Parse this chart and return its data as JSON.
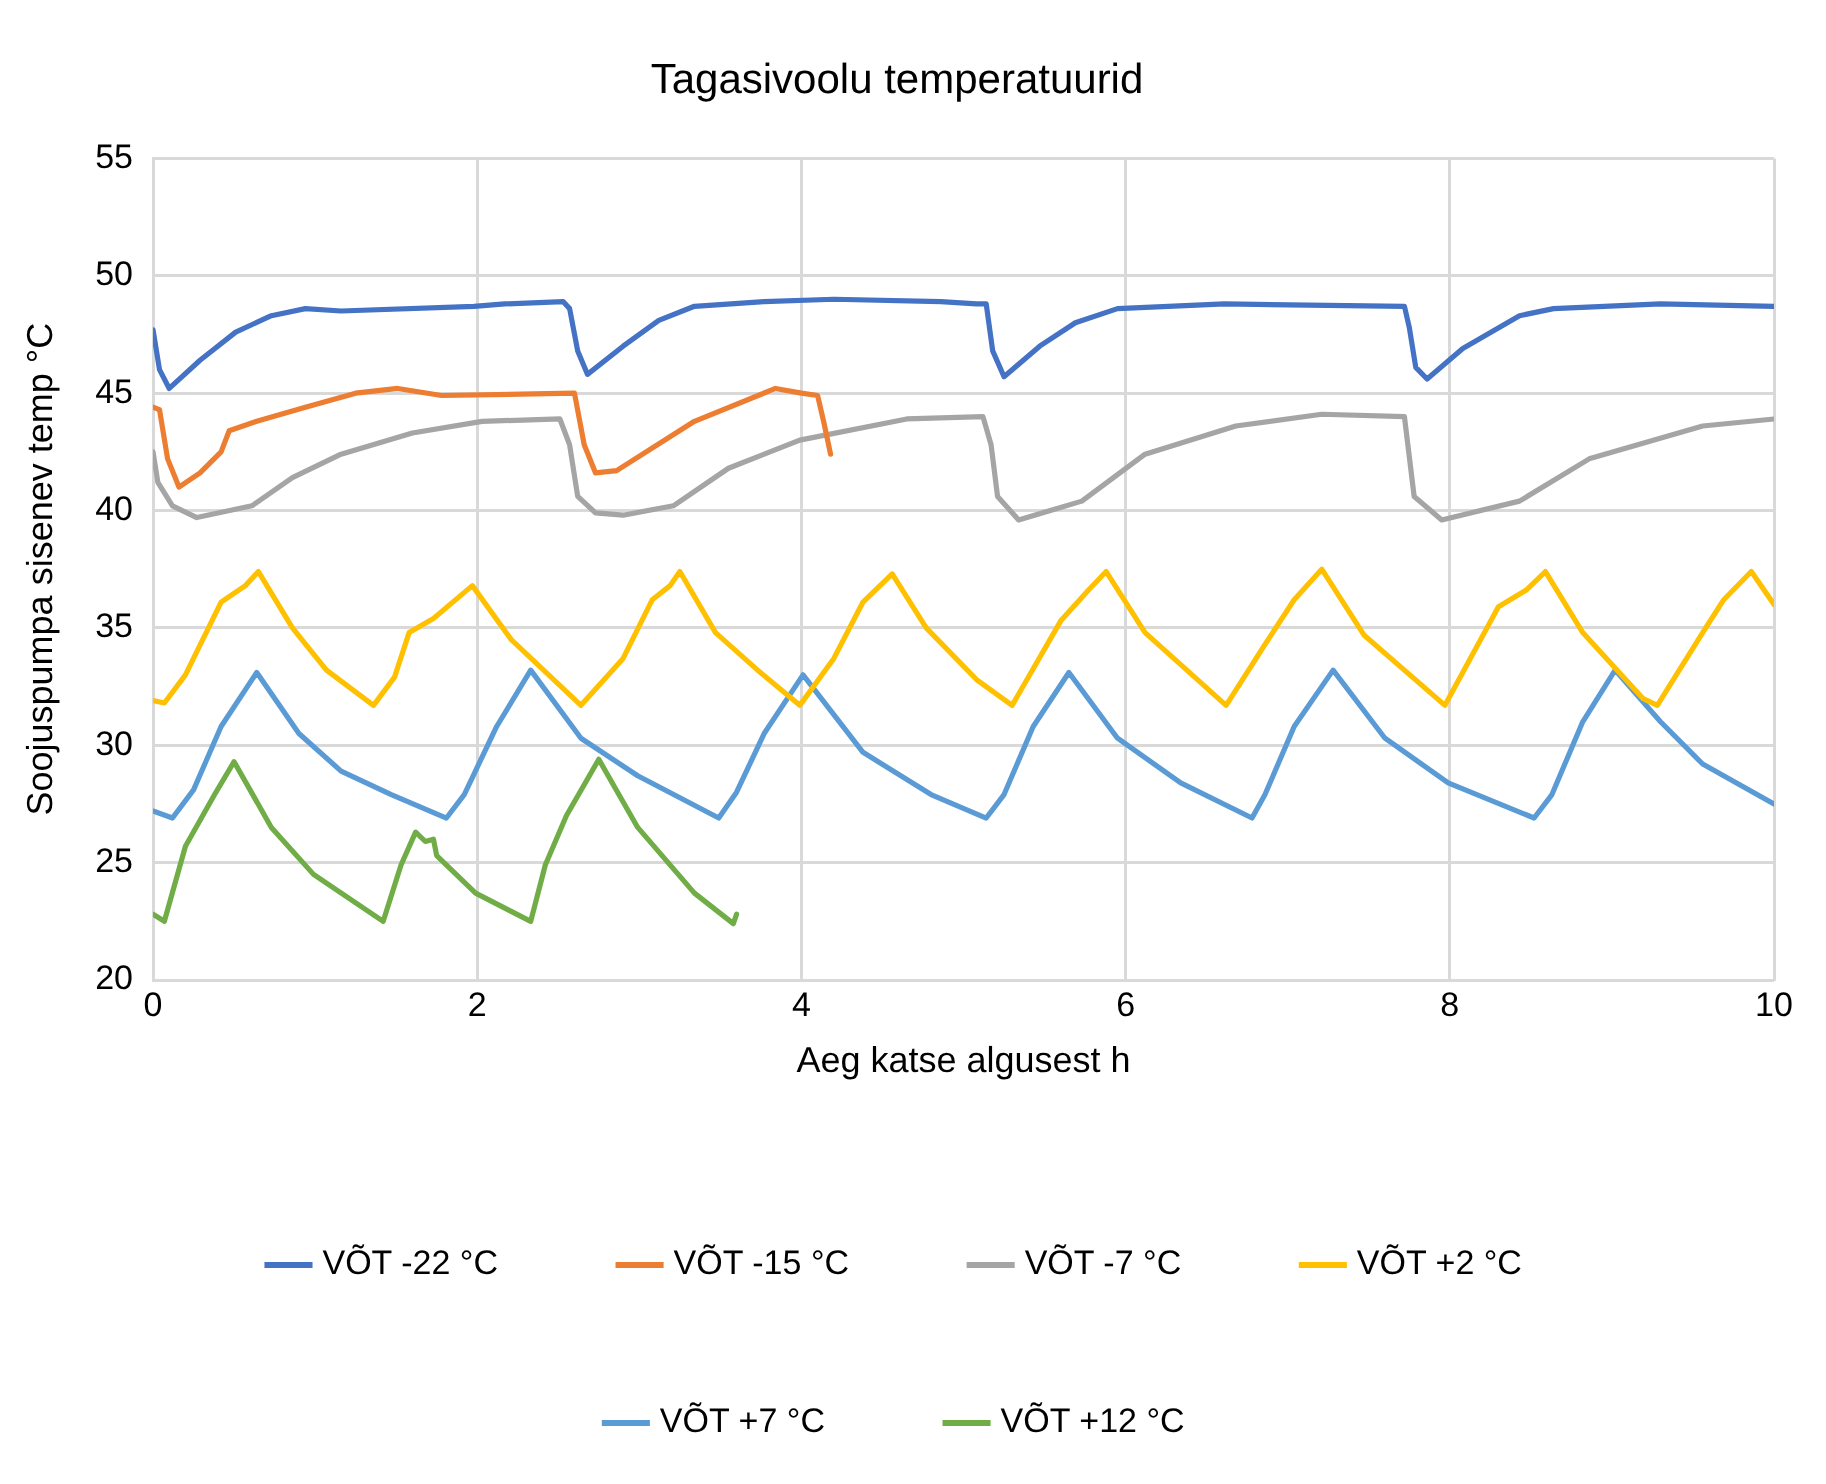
{
  "chart_data": {
    "type": "line",
    "title": "Tagasivoolu temperatuurid",
    "xlabel": "Aeg katse algusest h",
    "ylabel": "Soojuspumpa sisenev temp °C",
    "xlim": [
      0,
      10
    ],
    "ylim": [
      20,
      55
    ],
    "xticks": [
      0,
      2,
      4,
      6,
      8,
      10
    ],
    "yticks": [
      20,
      25,
      30,
      35,
      40,
      45,
      50,
      55
    ],
    "grid": true,
    "legend": "bottom",
    "series": [
      {
        "name": "VÕT -22 °C",
        "color": "#4472c4",
        "x": [
          0,
          0.04,
          0.1,
          0.29,
          0.51,
          0.73,
          0.94,
          1.16,
          1.98,
          2.17,
          2.53,
          2.57,
          2.62,
          2.68,
          2.9,
          3.12,
          3.34,
          3.77,
          4.2,
          4.86,
          5.08,
          5.14,
          5.18,
          5.25,
          5.47,
          5.69,
          5.95,
          6.61,
          7.72,
          7.75,
          7.79,
          7.86,
          8.08,
          8.43,
          8.64,
          9.3,
          10
        ],
        "values": [
          47.7,
          46.0,
          45.2,
          46.4,
          47.6,
          48.3,
          48.6,
          48.5,
          48.7,
          48.8,
          48.9,
          48.6,
          46.8,
          45.8,
          47.0,
          48.1,
          48.7,
          48.9,
          49.0,
          48.9,
          48.8,
          48.8,
          46.8,
          45.7,
          47.0,
          48.0,
          48.6,
          48.8,
          48.7,
          47.8,
          46.1,
          45.6,
          46.9,
          48.3,
          48.6,
          48.8,
          48.7
        ]
      },
      {
        "name": "VÕT -15 °C",
        "color": "#ed7d31",
        "x": [
          0,
          0.04,
          0.09,
          0.16,
          0.29,
          0.42,
          0.47,
          0.64,
          0.94,
          1.25,
          1.51,
          1.78,
          2.6,
          2.66,
          2.73,
          2.86,
          3.34,
          3.84,
          4.0,
          4.1,
          4.14,
          4.18
        ],
        "values": [
          44.4,
          44.3,
          42.2,
          41.0,
          41.6,
          42.5,
          43.4,
          43.8,
          44.4,
          45.0,
          45.2,
          44.9,
          45.0,
          42.8,
          41.6,
          41.7,
          43.8,
          45.2,
          45.0,
          44.9,
          43.7,
          42.4
        ]
      },
      {
        "name": "VÕT -7 °C",
        "color": "#a5a5a5",
        "x": [
          0,
          0.03,
          0.12,
          0.27,
          0.61,
          0.86,
          1.16,
          1.6,
          2.03,
          2.51,
          2.57,
          2.62,
          2.73,
          2.9,
          3.21,
          3.55,
          3.99,
          4.65,
          5.12,
          5.17,
          5.21,
          5.34,
          5.73,
          6.12,
          6.68,
          7.21,
          7.72,
          7.78,
          7.95,
          8.43,
          8.86,
          9.56,
          10
        ],
        "values": [
          42.5,
          41.2,
          40.2,
          39.7,
          40.2,
          41.4,
          42.4,
          43.3,
          43.8,
          43.9,
          42.8,
          40.6,
          39.9,
          39.8,
          40.2,
          41.8,
          43.0,
          43.9,
          44.0,
          42.8,
          40.6,
          39.6,
          40.4,
          42.4,
          43.6,
          44.1,
          44.0,
          40.6,
          39.6,
          40.4,
          42.2,
          43.6,
          43.9
        ]
      },
      {
        "name": "VÕT +2 °C",
        "color": "#ffc000",
        "x": [
          0,
          0.07,
          0.2,
          0.42,
          0.57,
          0.65,
          0.86,
          1.07,
          1.36,
          1.49,
          1.58,
          1.73,
          1.97,
          2.21,
          2.64,
          2.9,
          3.08,
          3.19,
          3.25,
          3.47,
          3.73,
          3.99,
          4.2,
          4.38,
          4.56,
          4.77,
          5.08,
          5.3,
          5.6,
          5.77,
          5.88,
          6.12,
          6.62,
          6.86,
          7.04,
          7.21,
          7.47,
          7.97,
          8.3,
          8.47,
          8.59,
          8.82,
          9.19,
          9.28,
          9.56,
          9.69,
          9.86,
          10
        ],
        "values": [
          31.9,
          31.8,
          33.0,
          36.1,
          36.8,
          37.4,
          35.0,
          33.2,
          31.7,
          32.9,
          34.8,
          35.4,
          36.8,
          34.5,
          31.7,
          33.7,
          36.2,
          36.8,
          37.4,
          34.8,
          33.2,
          31.7,
          33.7,
          36.1,
          37.3,
          35.0,
          32.8,
          31.7,
          35.3,
          36.6,
          37.4,
          34.8,
          31.7,
          34.3,
          36.2,
          37.5,
          34.7,
          31.7,
          35.9,
          36.6,
          37.4,
          34.8,
          32.0,
          31.7,
          34.8,
          36.2,
          37.4,
          36.0
        ]
      },
      {
        "name": "VÕT +7 °C",
        "color": "#5b9bd5",
        "x": [
          0,
          0.12,
          0.25,
          0.42,
          0.64,
          0.9,
          1.16,
          1.47,
          1.81,
          1.92,
          2.12,
          2.33,
          2.64,
          2.99,
          3.49,
          3.6,
          3.77,
          4.01,
          4.38,
          4.8,
          5.14,
          5.25,
          5.43,
          5.65,
          5.95,
          6.34,
          6.78,
          6.86,
          7.04,
          7.28,
          7.6,
          7.99,
          8.52,
          8.63,
          8.82,
          9.02,
          9.3,
          9.56,
          10
        ],
        "values": [
          27.2,
          26.9,
          28.1,
          30.8,
          33.1,
          30.5,
          28.9,
          27.9,
          26.9,
          27.9,
          30.8,
          33.2,
          30.3,
          28.7,
          26.9,
          28.0,
          30.5,
          33.0,
          29.7,
          27.9,
          26.9,
          27.9,
          30.8,
          33.1,
          30.3,
          28.4,
          26.9,
          27.9,
          30.8,
          33.2,
          30.3,
          28.4,
          26.9,
          27.9,
          31.0,
          33.2,
          31.0,
          29.2,
          27.5
        ]
      },
      {
        "name": "VÕT +12 °C",
        "color": "#70ad47",
        "x": [
          0,
          0.07,
          0.2,
          0.38,
          0.5,
          0.73,
          0.99,
          1.42,
          1.53,
          1.62,
          1.68,
          1.73,
          1.75,
          1.99,
          2.33,
          2.42,
          2.55,
          2.75,
          2.99,
          3.34,
          3.58,
          3.6
        ],
        "values": [
          22.8,
          22.5,
          25.7,
          27.9,
          29.3,
          26.5,
          24.5,
          22.5,
          24.9,
          26.3,
          25.9,
          26.0,
          25.3,
          23.7,
          22.5,
          24.9,
          27.0,
          29.4,
          26.5,
          23.7,
          22.4,
          22.8
        ]
      }
    ]
  }
}
